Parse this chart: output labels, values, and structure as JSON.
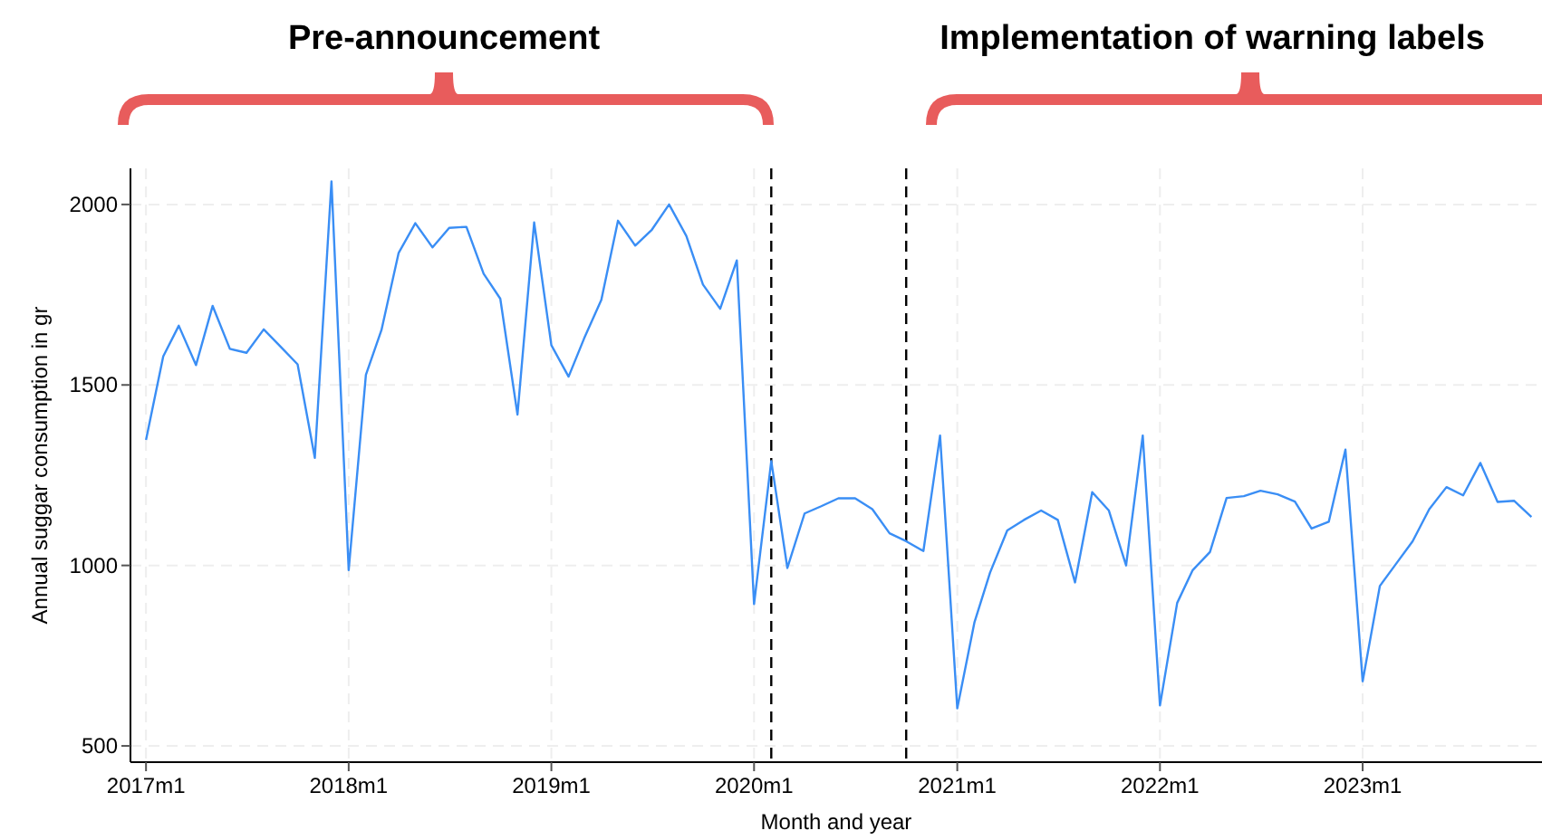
{
  "chart_data": {
    "type": "line",
    "xlabel": "Month and year",
    "ylabel": "Annual suggar consumption in gr",
    "annotations": [
      "Pre-announcement",
      "Implementation of warning labels"
    ],
    "x": [
      "2017-01",
      "2017-02",
      "2017-03",
      "2017-04",
      "2017-05",
      "2017-06",
      "2017-07",
      "2017-08",
      "2017-09",
      "2017-10",
      "2017-11",
      "2017-12",
      "2018-01",
      "2018-02",
      "2018-03",
      "2018-04",
      "2018-05",
      "2018-06",
      "2018-07",
      "2018-08",
      "2018-09",
      "2018-10",
      "2018-11",
      "2018-12",
      "2019-01",
      "2019-02",
      "2019-03",
      "2019-04",
      "2019-05",
      "2019-06",
      "2019-07",
      "2019-08",
      "2019-09",
      "2019-10",
      "2019-11",
      "2019-12",
      "2020-01",
      "2020-02",
      "2020-03",
      "2020-04",
      "2020-05",
      "2020-06",
      "2020-07",
      "2020-08",
      "2020-09",
      "2020-10",
      "2020-11",
      "2020-12",
      "2021-01",
      "2021-02",
      "2021-03",
      "2021-04",
      "2021-05",
      "2021-06",
      "2021-07",
      "2021-08",
      "2021-09",
      "2021-10",
      "2021-11",
      "2021-12",
      "2022-01",
      "2022-02",
      "2022-03",
      "2022-04",
      "2022-05",
      "2022-06",
      "2022-07",
      "2022-08",
      "2022-09",
      "2022-10",
      "2022-11",
      "2022-12",
      "2023-01",
      "2023-02",
      "2023-03",
      "2023-04",
      "2023-05",
      "2023-06",
      "2023-07",
      "2023-08",
      "2023-09",
      "2023-10",
      "2023-11"
    ],
    "series": [
      {
        "color": "#3a8ef5",
        "values": [
          1348,
          1579,
          1664,
          1555,
          1719,
          1600,
          1589,
          1654,
          1605,
          1557,
          1298,
          2064,
          987,
          1528,
          1652,
          1866,
          1948,
          1881,
          1935,
          1938,
          1808,
          1739,
          1418,
          1950,
          1610,
          1523,
          1629,
          1736,
          1955,
          1886,
          1930,
          2000,
          1913,
          1778,
          1711,
          1845,
          893,
          1289,
          993,
          1144,
          1164,
          1186,
          1186,
          1156,
          1089,
          1067,
          1040,
          1360,
          604,
          843,
          980,
          1097,
          1126,
          1152,
          1126,
          953,
          1203,
          1152,
          1000,
          1360,
          612,
          896,
          987,
          1037,
          1187,
          1192,
          1207,
          1197,
          1177,
          1102,
          1121,
          1321,
          679,
          943,
          1002,
          1067,
          1156,
          1217,
          1194,
          1284,
          1176,
          1179,
          1134
        ]
      }
    ],
    "xlim": [
      "2016-12-04",
      "2023-11-20"
    ],
    "xticks": [
      {
        "value": "2017-01",
        "label": "2017m1"
      },
      {
        "value": "2018-01",
        "label": "2018m1"
      },
      {
        "value": "2019-01",
        "label": "2019m1"
      },
      {
        "value": "2020-01",
        "label": "2020m1"
      },
      {
        "value": "2021-01",
        "label": "2021m1"
      },
      {
        "value": "2022-01",
        "label": "2022m1"
      },
      {
        "value": "2023-01",
        "label": "2023m1"
      }
    ],
    "ylim": [
      455,
      2100
    ],
    "yticks": [
      500,
      1000,
      1500,
      2000
    ],
    "ref_lines": [
      {
        "axis": "x",
        "value": "2020-02",
        "color": "#000000",
        "line_style": "dashed"
      },
      {
        "axis": "x",
        "value": "2020-10",
        "color": "#000000",
        "line_style": "dashed"
      }
    ],
    "grid": true,
    "marker": "none",
    "line_style": "solid"
  }
}
